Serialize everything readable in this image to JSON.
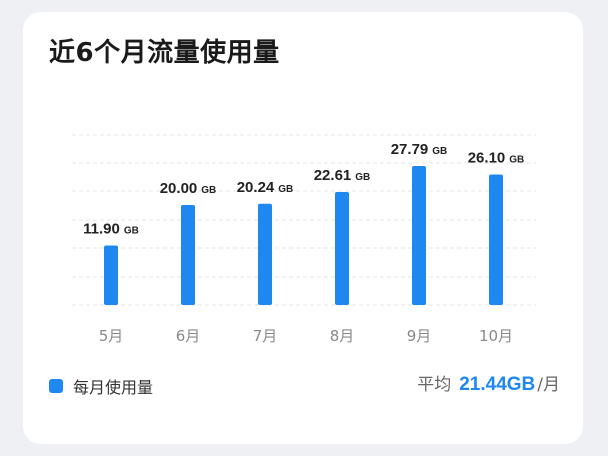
{
  "card": {
    "title": "近6个月流量使用量"
  },
  "chart_data": {
    "type": "bar",
    "title": "近6个月流量使用量",
    "categories": [
      "5月",
      "6月",
      "7月",
      "8月",
      "9月",
      "10月"
    ],
    "series": [
      {
        "name": "每月使用量",
        "values": [
          11.9,
          20.0,
          20.24,
          22.61,
          27.79,
          26.1
        ]
      }
    ],
    "value_labels": [
      "11.90",
      "20.00",
      "20.24",
      "22.61",
      "27.79",
      "26.10"
    ],
    "unit": "GB",
    "ylim": [
      0,
      34
    ],
    "grid": true,
    "legend": "bottom-left",
    "bar_color": "#1e88f0"
  },
  "legend": {
    "label": "每月使用量"
  },
  "average": {
    "label": "平均",
    "value": "21.44GB",
    "unit": "/月",
    "value_color": "#1e88f0"
  }
}
